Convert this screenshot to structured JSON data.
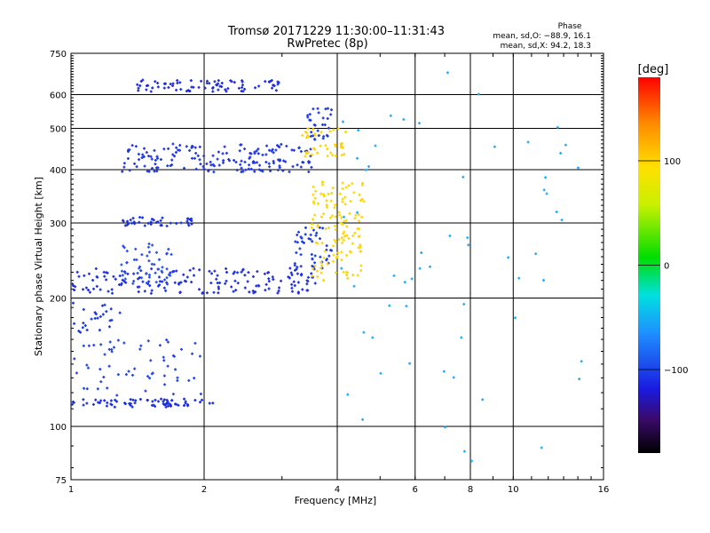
{
  "chart_data": {
    "type": "scatter",
    "title": "Tromsø 20171229 11:30:00–11:31:43",
    "subtitle": "RwPretec (8p)",
    "xlabel": "Frequency [MHz]",
    "ylabel": "Stationary phase Virtual Height [km]",
    "x_scale": "log",
    "y_scale": "log",
    "xlim": [
      1,
      16
    ],
    "ylim": [
      75,
      750
    ],
    "x_ticks": [
      1,
      2,
      4,
      6,
      8,
      10,
      16
    ],
    "y_ticks": [
      75,
      100,
      200,
      300,
      400,
      500,
      600,
      750
    ],
    "x_grid": [
      1,
      2,
      4,
      6,
      8,
      10,
      16
    ],
    "y_grid": [
      100,
      200,
      300,
      400,
      500,
      600
    ],
    "grid": true,
    "phase_stats": {
      "title": "Phase",
      "line_o": "mean, sd,O: −88.9, 16.1",
      "line_x": "mean, sd,X:  94.2, 18.3"
    },
    "colorbar": {
      "label": "[deg]",
      "range": [
        -180,
        180
      ],
      "ticks": [
        100,
        0,
        -100
      ],
      "tick_labels": [
        "100",
        "0",
        "−100"
      ]
    },
    "series": [
      {
        "trace": "o_low",
        "color": "#1a2ee0",
        "x_range": [
          1.0,
          2.1
        ],
        "y_range": [
          111,
          116
        ],
        "count": 70
      },
      {
        "trace": "o_low_cluster",
        "color": "#2244e8",
        "x_range": [
          1.0,
          2.0
        ],
        "y_range": [
          118,
          160
        ],
        "count": 60
      },
      {
        "trace": "o_mid_low",
        "color": "#1a35e6",
        "x_range": [
          1.0,
          1.3
        ],
        "y_range": [
          165,
          195
        ],
        "count": 25
      },
      {
        "trace": "o_f1",
        "color": "#1e2ee2",
        "x_range": [
          1.0,
          3.6
        ],
        "y_range": [
          205,
          235
        ],
        "count": 170
      },
      {
        "trace": "o_f1_spread",
        "color": "#2a4ff0",
        "x_range": [
          1.3,
          1.7
        ],
        "y_range": [
          215,
          270
        ],
        "count": 50
      },
      {
        "trace": "o_cusp",
        "color": "#1e3ae6",
        "x_range": [
          3.2,
          3.9
        ],
        "y_range": [
          235,
          300
        ],
        "count": 45
      },
      {
        "trace": "x_f1",
        "color": "#ffd700",
        "x_range": [
          3.5,
          4.6
        ],
        "y_range": [
          220,
          380
        ],
        "count": 130
      },
      {
        "trace": "o_2hop",
        "color": "#1a2fe2",
        "x_range": [
          1.3,
          1.9
        ],
        "y_range": [
          295,
          310
        ],
        "count": 40
      },
      {
        "trace": "o_f2",
        "color": "#1f36e6",
        "x_range": [
          1.3,
          3.5
        ],
        "y_range": [
          395,
          460
        ],
        "count": 170
      },
      {
        "trace": "x_f2",
        "color": "#ffd400",
        "x_range": [
          3.3,
          4.2
        ],
        "y_range": [
          430,
          500
        ],
        "count": 40
      },
      {
        "trace": "o_f2_rise",
        "color": "#1e3ae6",
        "x_range": [
          3.4,
          3.9
        ],
        "y_range": [
          470,
          560
        ],
        "count": 30
      },
      {
        "trace": "o_top",
        "color": "#1c2de4",
        "x_range": [
          1.4,
          3.0
        ],
        "y_range": [
          610,
          650
        ],
        "count": 80
      },
      {
        "trace": "noise",
        "color": "#22aaff",
        "x_range": [
          4.0,
          14.5
        ],
        "y_range": [
          80,
          680
        ],
        "count": 60
      }
    ]
  }
}
